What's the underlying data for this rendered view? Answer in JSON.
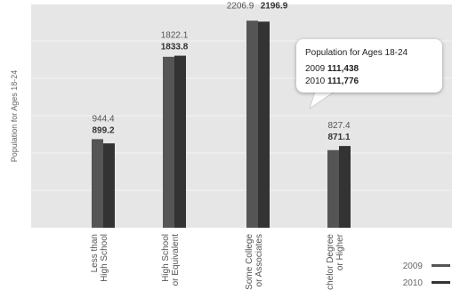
{
  "chart_data": {
    "type": "bar",
    "categories": [
      [
        "Less than",
        "High School"
      ],
      [
        "High School",
        "or Equivalent"
      ],
      [
        "Some College",
        "or Associates"
      ],
      [
        "Bachelor Degree",
        "or Higher"
      ]
    ],
    "ylabel": "Population for Ages 18-24",
    "ylim": [
      0,
      2380
    ],
    "series": [
      {
        "name": "2009",
        "values": [
          944.4,
          1822.1,
          2206.9,
          827.4
        ],
        "labels": [
          "944.4",
          "1822.1",
          "2206.9",
          "827.4"
        ],
        "label_bold": false,
        "color": "#555555"
      },
      {
        "name": "2010",
        "values": [
          899.2,
          1833.8,
          2196.9,
          871.1
        ],
        "labels": [
          "899.2",
          "1833.8",
          "2196.9",
          "871.1"
        ],
        "label_bold": true,
        "color": "#333333"
      }
    ],
    "plot_background": "#e6e6e6",
    "grid": true,
    "legend": "bottom-right",
    "tooltip": {
      "title": "Population for Ages 18-24",
      "rows": [
        {
          "year": "2009",
          "value": "111,438"
        },
        {
          "year": "2010",
          "value": "111,776"
        }
      ]
    }
  }
}
